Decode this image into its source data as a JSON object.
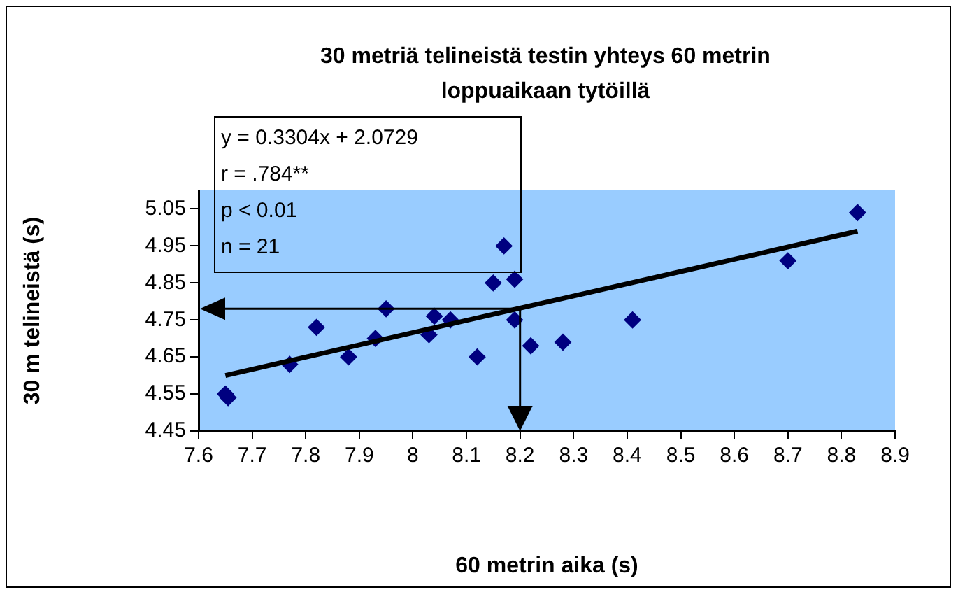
{
  "chart_data": {
    "type": "scatter",
    "title": "30 metriä telineistä testin yhteys 60 metrin loppuaikaan tytöillä",
    "xlabel": "60 metrin aika (s)",
    "ylabel": "30 m telineistä (s)",
    "annotations": [
      "y = 0.3304x + 2.0729",
      "r = .784**",
      "p < 0.01",
      "n = 21"
    ],
    "series": [
      {
        "color": "#000080",
        "x": [
          7.65,
          7.655,
          7.77,
          7.82,
          7.88,
          7.93,
          7.95,
          8.03,
          8.04,
          8.07,
          8.12,
          8.15,
          8.17,
          8.19,
          8.19,
          8.22,
          8.28,
          8.41,
          8.7,
          8.83
        ],
        "values": [
          4.55,
          4.54,
          4.63,
          4.73,
          4.65,
          4.7,
          4.78,
          4.71,
          4.76,
          4.75,
          4.65,
          4.85,
          4.95,
          4.86,
          4.75,
          4.68,
          4.69,
          4.75,
          4.91,
          5.04
        ]
      },
      {
        "type": "line",
        "marker": "none",
        "color": "#000000",
        "x": [
          7.65,
          8.83
        ],
        "values": [
          4.6,
          4.99
        ]
      }
    ],
    "ref_lines": [
      {
        "axis": "x",
        "value": 8.2,
        "color": "#000000"
      },
      {
        "axis": "y",
        "value": 4.78,
        "color": "#000000"
      }
    ],
    "xlim": [
      7.6,
      8.9
    ],
    "xticks": [
      7.6,
      7.7,
      7.8,
      7.9,
      8,
      8.1,
      8.2,
      8.3,
      8.4,
      8.5,
      8.6,
      8.7,
      8.8,
      8.9
    ],
    "ylim": [
      4.45,
      5.1
    ],
    "yticks": [
      4.45,
      4.55,
      4.65,
      4.75,
      4.85,
      4.95,
      5.05
    ],
    "marker": "diamond",
    "grid": false,
    "legend": false
  }
}
